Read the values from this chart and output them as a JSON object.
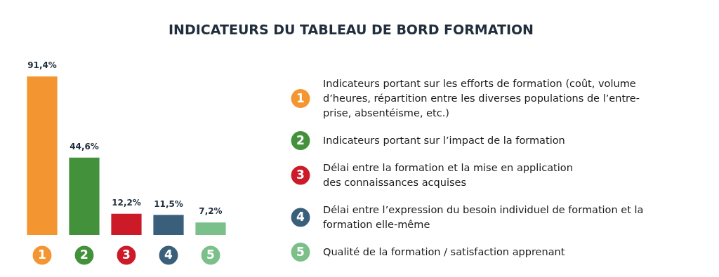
{
  "chart_data": {
    "type": "bar",
    "title": "INDICATEURS DU TABLEAU DE BORD FORMATION",
    "categories": [
      "1",
      "2",
      "3",
      "4",
      "5"
    ],
    "values": [
      91.4,
      44.6,
      12.2,
      11.5,
      7.2
    ],
    "value_labels": [
      "91,4%",
      "44,6%",
      "12,2%",
      "11,5%",
      "7,2%"
    ],
    "colors": [
      "#f39631",
      "#43923b",
      "#cc1a28",
      "#3a5f7a",
      "#7bbf8a"
    ],
    "annotations": [
      "Indicateurs portant sur les efforts de formation (coût, volume\nd’heures, répartition entre les diverses populations de l’entre-\nprise, absentéisme, etc.)",
      "Indicateurs portant sur l’impact de la formation",
      "Délai entre la formation et la mise en application\ndes connaissances acquises",
      "Délai entre l’expression du besoin individuel de formation et la\nformation elle-même",
      "Qualité de la formation / satisfaction apprenant"
    ]
  }
}
